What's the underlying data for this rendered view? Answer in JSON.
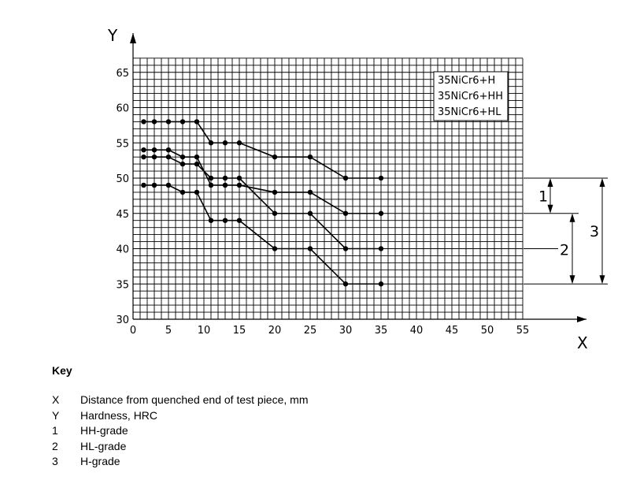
{
  "chart_data": {
    "type": "line",
    "xlabel": "X",
    "ylabel": "Y",
    "xlim": [
      0,
      55
    ],
    "ylim": [
      30,
      67
    ],
    "x_ticks": [
      0,
      5,
      10,
      15,
      20,
      25,
      30,
      35,
      40,
      45,
      50,
      55
    ],
    "y_ticks": [
      30,
      35,
      40,
      45,
      50,
      55,
      60,
      65
    ],
    "grid": true,
    "grid_minor_step": 1,
    "legend": {
      "placement": "top-right",
      "entries": [
        "35NiCr6+H",
        "35NiCr6+HH",
        "35NiCr6+HL"
      ]
    },
    "x": [
      1.5,
      3,
      5,
      7,
      9,
      11,
      13,
      15,
      20,
      25,
      30,
      35
    ],
    "series": [
      {
        "values": [
          58,
          58,
          58,
          58,
          58,
          55,
          55,
          55,
          53,
          53,
          50,
          50
        ]
      },
      {
        "values": [
          54,
          54,
          54,
          53,
          53,
          49,
          49,
          49,
          48,
          48,
          45,
          45
        ]
      },
      {
        "values": [
          53,
          53,
          53,
          52,
          52,
          50,
          50,
          50,
          45,
          45,
          40,
          40
        ]
      },
      {
        "values": [
          49,
          49,
          49,
          48,
          48,
          44,
          44,
          44,
          40,
          40,
          35,
          35
        ]
      }
    ],
    "bands": [
      {
        "label": "1",
        "from": 45,
        "to": 50
      },
      {
        "label": "2",
        "from": 35,
        "to": 45
      },
      {
        "label": "3",
        "from": 35,
        "to": 50
      }
    ]
  },
  "key": {
    "title": "Key",
    "items": [
      {
        "symbol": "X",
        "text": "Distance from quenched end of test piece, mm"
      },
      {
        "symbol": "Y",
        "text": "Hardness, HRC"
      },
      {
        "symbol": "1",
        "text": "HH-grade"
      },
      {
        "symbol": "2",
        "text": "HL-grade"
      },
      {
        "symbol": "3",
        "text": "H-grade"
      }
    ]
  }
}
